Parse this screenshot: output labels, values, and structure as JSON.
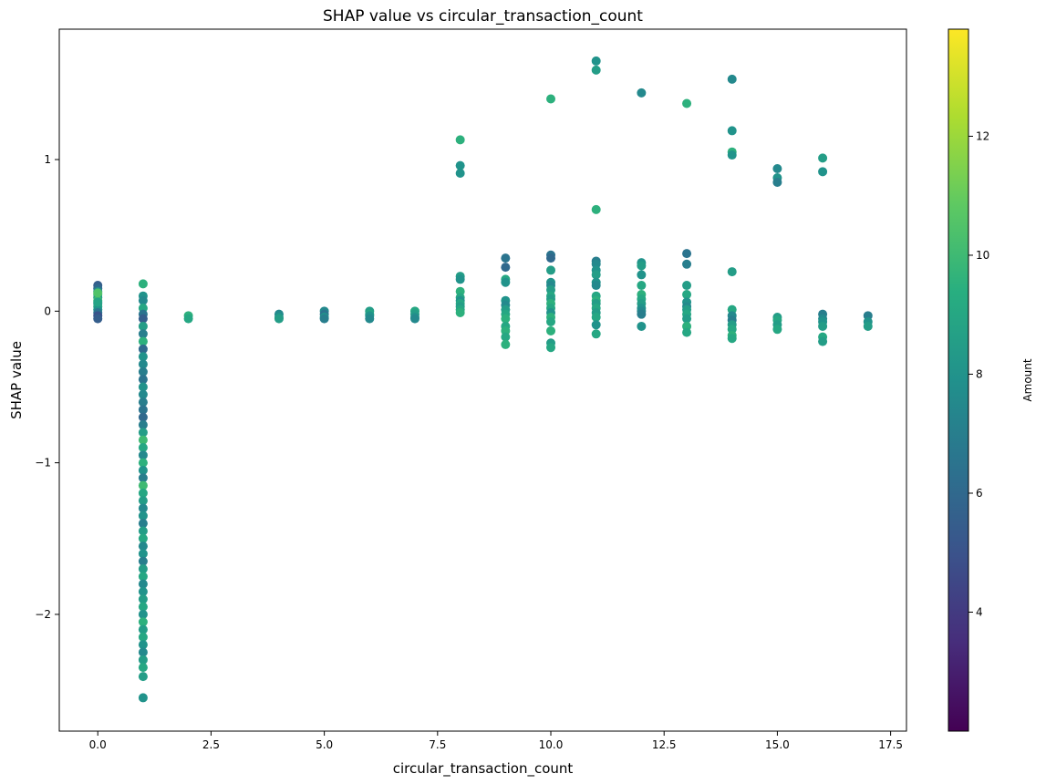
{
  "chart_data": {
    "type": "scatter",
    "title": "SHAP value vs circular_transaction_count",
    "xlabel": "circular_transaction_count",
    "ylabel": "SHAP value",
    "xlim": [
      -0.85,
      17.85
    ],
    "ylim": [
      -2.77,
      1.86
    ],
    "xticks": [
      0.0,
      2.5,
      5.0,
      7.5,
      10.0,
      12.5,
      15.0,
      17.5
    ],
    "xtick_labels": [
      "0.0",
      "2.5",
      "5.0",
      "7.5",
      "10.0",
      "12.5",
      "15.0",
      "17.5"
    ],
    "yticks": [
      -2,
      -1,
      0,
      1
    ],
    "ytick_labels": [
      "−2",
      "−1",
      "0",
      "1"
    ],
    "grid": false,
    "colorbar": {
      "label": "Amount",
      "colormap": "viridis",
      "range": [
        2.0,
        13.8
      ],
      "ticks": [
        4,
        6,
        8,
        10,
        12
      ],
      "tick_labels": [
        "4",
        "6",
        "8",
        "10",
        "12"
      ]
    },
    "series": [
      {
        "points": [
          [
            0,
            0.17,
            5.5
          ],
          [
            0,
            0.15,
            6.0
          ],
          [
            0,
            0.13,
            7.5
          ],
          [
            0,
            0.11,
            9.5
          ],
          [
            0,
            0.09,
            8.5
          ],
          [
            0,
            0.07,
            10.0
          ],
          [
            0,
            0.05,
            7.0
          ],
          [
            0,
            0.03,
            9.0
          ],
          [
            0,
            0.01,
            8.0
          ],
          [
            0,
            -0.01,
            6.5
          ],
          [
            0,
            -0.03,
            5.0
          ],
          [
            0,
            -0.05,
            5.5
          ],
          [
            0,
            0.12,
            10.5
          ],
          [
            0,
            0.06,
            8.8
          ],
          [
            1,
            0.18,
            9.5
          ],
          [
            1,
            0.1,
            8.0
          ],
          [
            1,
            0.07,
            7.5
          ],
          [
            1,
            0.02,
            9.0
          ],
          [
            1,
            -0.02,
            6.5
          ],
          [
            1,
            -0.05,
            5.5
          ],
          [
            1,
            -0.1,
            8.5
          ],
          [
            1,
            -0.15,
            7.0
          ],
          [
            1,
            -0.2,
            9.5
          ],
          [
            1,
            -0.25,
            6.0
          ],
          [
            1,
            -0.3,
            8.0
          ],
          [
            1,
            -0.35,
            7.5
          ],
          [
            1,
            -0.4,
            7.0
          ],
          [
            1,
            -0.45,
            6.5
          ],
          [
            1,
            -0.5,
            8.0
          ],
          [
            1,
            -0.55,
            7.5
          ],
          [
            1,
            -0.6,
            7.0
          ],
          [
            1,
            -0.65,
            6.5
          ],
          [
            1,
            -0.7,
            6.0
          ],
          [
            1,
            -0.75,
            7.0
          ],
          [
            1,
            -0.8,
            8.5
          ],
          [
            1,
            -0.85,
            10.0
          ],
          [
            1,
            -0.9,
            9.0
          ],
          [
            1,
            -0.95,
            7.5
          ],
          [
            1,
            -1.0,
            9.5
          ],
          [
            1,
            -1.05,
            8.0
          ],
          [
            1,
            -1.1,
            7.0
          ],
          [
            1,
            -1.15,
            10.0
          ],
          [
            1,
            -1.2,
            9.0
          ],
          [
            1,
            -1.25,
            8.5
          ],
          [
            1,
            -1.3,
            7.5
          ],
          [
            1,
            -1.35,
            8.0
          ],
          [
            1,
            -1.4,
            7.0
          ],
          [
            1,
            -1.45,
            8.5
          ],
          [
            1,
            -1.5,
            9.0
          ],
          [
            1,
            -1.55,
            7.5
          ],
          [
            1,
            -1.6,
            8.0
          ],
          [
            1,
            -1.65,
            7.0
          ],
          [
            1,
            -1.7,
            8.5
          ],
          [
            1,
            -1.75,
            9.0
          ],
          [
            1,
            -1.8,
            7.5
          ],
          [
            1,
            -1.85,
            8.0
          ],
          [
            1,
            -1.9,
            8.5
          ],
          [
            1,
            -1.95,
            9.0
          ],
          [
            1,
            -2.0,
            8.0
          ],
          [
            1,
            -2.05,
            9.5
          ],
          [
            1,
            -2.1,
            8.5
          ],
          [
            1,
            -2.15,
            9.0
          ],
          [
            1,
            -2.2,
            8.0
          ],
          [
            1,
            -2.25,
            7.5
          ],
          [
            1,
            -2.3,
            8.5
          ],
          [
            1,
            -2.35,
            9.0
          ],
          [
            1,
            -2.41,
            8.5
          ],
          [
            1,
            -2.55,
            8.0
          ],
          [
            2,
            -0.03,
            9.5
          ],
          [
            2,
            -0.05,
            9.0
          ],
          [
            4,
            -0.02,
            7.5
          ],
          [
            4,
            -0.04,
            8.0
          ],
          [
            4,
            -0.05,
            8.5
          ],
          [
            5,
            0.0,
            7.5
          ],
          [
            5,
            -0.02,
            6.5
          ],
          [
            5,
            -0.04,
            8.0
          ],
          [
            5,
            -0.05,
            7.0
          ],
          [
            6,
            0.0,
            8.5
          ],
          [
            6,
            -0.02,
            9.0
          ],
          [
            6,
            -0.03,
            8.0
          ],
          [
            6,
            -0.05,
            7.5
          ],
          [
            7,
            0.0,
            9.0
          ],
          [
            7,
            -0.02,
            8.5
          ],
          [
            7,
            -0.04,
            8.0
          ],
          [
            7,
            -0.05,
            7.5
          ],
          [
            8,
            1.13,
            9.5
          ],
          [
            8,
            0.96,
            8.0
          ],
          [
            8,
            0.91,
            8.0
          ],
          [
            8,
            0.23,
            8.5
          ],
          [
            8,
            0.21,
            8.0
          ],
          [
            8,
            0.13,
            9.5
          ],
          [
            8,
            0.09,
            9.0
          ],
          [
            8,
            0.07,
            8.0
          ],
          [
            8,
            0.05,
            9.0
          ],
          [
            8,
            0.03,
            8.5
          ],
          [
            8,
            0.01,
            9.0
          ],
          [
            8,
            -0.01,
            9.5
          ],
          [
            9,
            0.35,
            6.5
          ],
          [
            9,
            0.29,
            6.0
          ],
          [
            9,
            0.21,
            9.0
          ],
          [
            9,
            0.19,
            8.0
          ],
          [
            9,
            0.07,
            8.0
          ],
          [
            9,
            0.04,
            7.5
          ],
          [
            9,
            0.01,
            8.5
          ],
          [
            9,
            -0.02,
            9.0
          ],
          [
            9,
            -0.05,
            9.5
          ],
          [
            9,
            -0.1,
            9.0
          ],
          [
            9,
            -0.13,
            9.5
          ],
          [
            9,
            -0.17,
            9.0
          ],
          [
            9,
            -0.22,
            9.5
          ],
          [
            10,
            1.4,
            9.5
          ],
          [
            10,
            0.37,
            6.5
          ],
          [
            10,
            0.35,
            6.0
          ],
          [
            10,
            0.27,
            8.5
          ],
          [
            10,
            0.19,
            8.0
          ],
          [
            10,
            0.17,
            7.5
          ],
          [
            10,
            0.14,
            8.5
          ],
          [
            10,
            0.1,
            9.0
          ],
          [
            10,
            0.08,
            8.5
          ],
          [
            10,
            0.05,
            9.5
          ],
          [
            10,
            0.02,
            9.0
          ],
          [
            10,
            -0.01,
            8.0
          ],
          [
            10,
            -0.04,
            9.5
          ],
          [
            10,
            -0.07,
            9.0
          ],
          [
            10,
            -0.13,
            9.5
          ],
          [
            10,
            -0.21,
            8.5
          ],
          [
            10,
            -0.24,
            9.0
          ],
          [
            11,
            1.65,
            8.0
          ],
          [
            11,
            1.59,
            8.5
          ],
          [
            11,
            0.67,
            9.5
          ],
          [
            11,
            0.33,
            7.0
          ],
          [
            11,
            0.31,
            7.5
          ],
          [
            11,
            0.27,
            8.0
          ],
          [
            11,
            0.24,
            8.5
          ],
          [
            11,
            0.19,
            8.0
          ],
          [
            11,
            0.17,
            7.5
          ],
          [
            11,
            0.1,
            9.0
          ],
          [
            11,
            0.07,
            9.5
          ],
          [
            11,
            0.05,
            8.5
          ],
          [
            11,
            0.02,
            9.0
          ],
          [
            11,
            -0.01,
            8.5
          ],
          [
            11,
            -0.04,
            9.0
          ],
          [
            11,
            -0.09,
            8.0
          ],
          [
            11,
            -0.15,
            9.0
          ],
          [
            12,
            1.44,
            7.5
          ],
          [
            12,
            0.32,
            8.0
          ],
          [
            12,
            0.3,
            8.5
          ],
          [
            12,
            0.24,
            8.0
          ],
          [
            12,
            0.17,
            9.0
          ],
          [
            12,
            0.11,
            9.5
          ],
          [
            12,
            0.08,
            9.0
          ],
          [
            12,
            0.05,
            8.5
          ],
          [
            12,
            0.02,
            8.0
          ],
          [
            12,
            0.0,
            7.5
          ],
          [
            12,
            -0.02,
            7.0
          ],
          [
            12,
            -0.1,
            8.0
          ],
          [
            13,
            1.37,
            9.5
          ],
          [
            13,
            0.38,
            6.5
          ],
          [
            13,
            0.31,
            7.0
          ],
          [
            13,
            0.17,
            8.5
          ],
          [
            13,
            0.11,
            9.0
          ],
          [
            13,
            0.06,
            8.0
          ],
          [
            13,
            0.03,
            7.5
          ],
          [
            13,
            0.01,
            8.5
          ],
          [
            13,
            -0.02,
            9.0
          ],
          [
            13,
            -0.05,
            8.5
          ],
          [
            13,
            -0.1,
            9.5
          ],
          [
            13,
            -0.14,
            9.0
          ],
          [
            14,
            1.53,
            7.5
          ],
          [
            14,
            1.19,
            8.0
          ],
          [
            14,
            1.05,
            9.5
          ],
          [
            14,
            1.03,
            8.0
          ],
          [
            14,
            0.26,
            8.5
          ],
          [
            14,
            0.01,
            9.0
          ],
          [
            14,
            -0.03,
            7.5
          ],
          [
            14,
            -0.06,
            7.0
          ],
          [
            14,
            -0.09,
            8.5
          ],
          [
            14,
            -0.12,
            9.0
          ],
          [
            14,
            -0.16,
            9.5
          ],
          [
            14,
            -0.18,
            9.0
          ],
          [
            15,
            0.94,
            7.5
          ],
          [
            15,
            0.88,
            8.0
          ],
          [
            15,
            0.85,
            7.0
          ],
          [
            15,
            -0.04,
            8.5
          ],
          [
            15,
            -0.06,
            9.0
          ],
          [
            15,
            -0.09,
            8.5
          ],
          [
            15,
            -0.12,
            9.0
          ],
          [
            16,
            1.01,
            8.5
          ],
          [
            16,
            0.92,
            8.0
          ],
          [
            16,
            -0.02,
            7.0
          ],
          [
            16,
            -0.05,
            7.5
          ],
          [
            16,
            -0.07,
            8.0
          ],
          [
            16,
            -0.1,
            8.5
          ],
          [
            16,
            -0.17,
            9.0
          ],
          [
            16,
            -0.2,
            8.5
          ],
          [
            17,
            -0.03,
            7.0
          ],
          [
            17,
            -0.07,
            8.0
          ],
          [
            17,
            -0.1,
            8.5
          ]
        ]
      }
    ]
  }
}
